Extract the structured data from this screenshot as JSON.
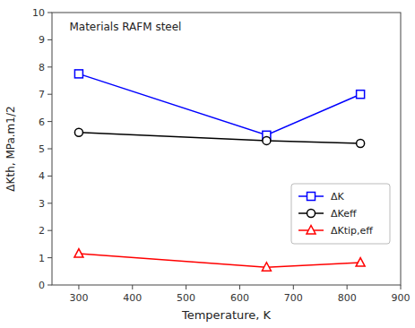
{
  "chart_data": {
    "type": "line",
    "title": "Materials RAFM steel",
    "x_label": "Temperature, K",
    "y_label": "ΔKth, MPa.m1/2",
    "x": [
      300,
      650,
      825
    ],
    "xlim": [
      250,
      900
    ],
    "ylim": [
      0,
      10
    ],
    "xticks": [
      300,
      400,
      500,
      600,
      700,
      800,
      900
    ],
    "yticks": [
      0,
      1,
      2,
      3,
      4,
      5,
      6,
      7,
      8,
      9,
      10
    ],
    "grid": false,
    "legend": "lower right",
    "series": [
      {
        "name": "ΔK",
        "color": "blue",
        "marker": "square",
        "line_style": "solid",
        "values": [
          7.75,
          5.5,
          7.0
        ]
      },
      {
        "name": "ΔKeff",
        "color": "black",
        "marker": "circle",
        "line_style": "solid",
        "values": [
          5.6,
          5.3,
          5.2
        ]
      },
      {
        "name": "ΔKtip,eff",
        "color": "red",
        "marker": "triangle",
        "line_style": "solid",
        "values": [
          1.15,
          0.65,
          0.82
        ]
      }
    ]
  }
}
